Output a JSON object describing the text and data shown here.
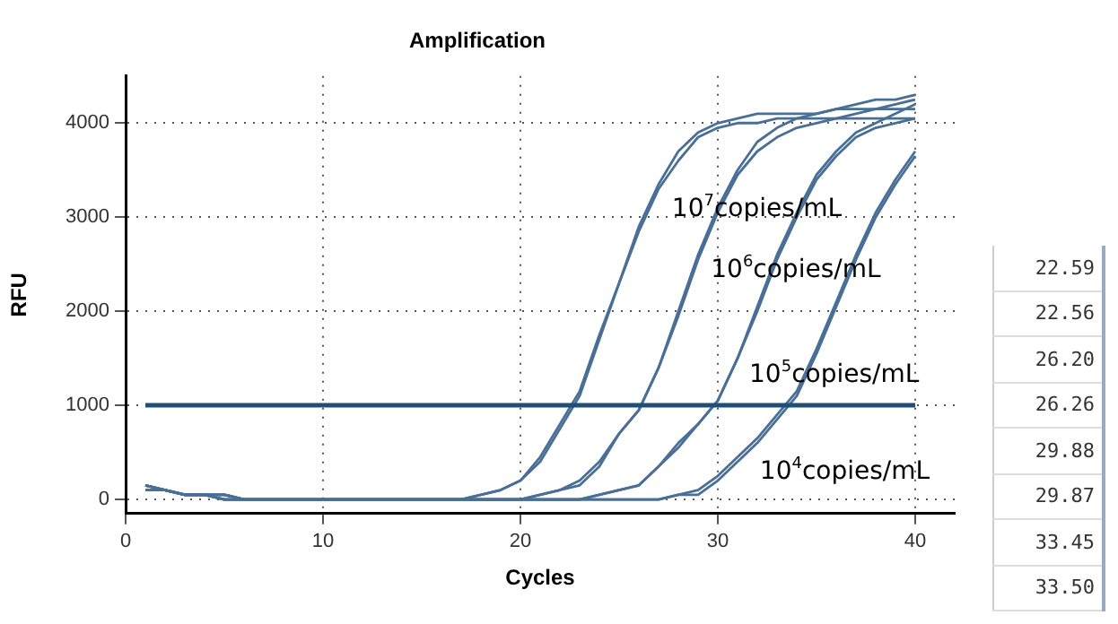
{
  "chart_data": {
    "type": "line",
    "title": "Amplification",
    "xlabel": "Cycles",
    "ylabel": "RFU",
    "x": [
      1,
      2,
      3,
      4,
      5,
      6,
      7,
      8,
      9,
      10,
      11,
      12,
      13,
      14,
      15,
      16,
      17,
      18,
      19,
      20,
      21,
      22,
      23,
      24,
      25,
      26,
      27,
      28,
      29,
      30,
      31,
      32,
      33,
      34,
      35,
      36,
      37,
      38,
      39,
      40
    ],
    "series": [
      {
        "name": "10$^{7}$copies/mL",
        "color": "#4a6f96",
        "values": [
          150,
          100,
          50,
          50,
          50,
          0,
          0,
          0,
          0,
          0,
          0,
          0,
          0,
          0,
          0,
          0,
          0,
          50,
          100,
          200,
          450,
          800,
          1150,
          1750,
          2300,
          2850,
          3300,
          3600,
          3850,
          3950,
          4000,
          4000,
          4050,
          4050,
          4050,
          4050,
          4050,
          4050,
          4050,
          4050
        ]
      },
      {
        "color": "#4a6f96",
        "values": [
          100,
          100,
          50,
          50,
          0,
          0,
          0,
          0,
          0,
          0,
          0,
          0,
          0,
          0,
          0,
          0,
          0,
          50,
          100,
          200,
          400,
          750,
          1100,
          1700,
          2300,
          2900,
          3350,
          3700,
          3900,
          4000,
          4050,
          4100,
          4100,
          4100,
          4100,
          4150,
          4150,
          4150,
          4150,
          4150
        ]
      },
      {
        "name": "10$^{6}$copies/mL",
        "color": "#4a6f96",
        "values": [
          150,
          100,
          50,
          50,
          50,
          0,
          0,
          0,
          0,
          0,
          0,
          0,
          0,
          0,
          0,
          0,
          0,
          0,
          0,
          0,
          50,
          100,
          200,
          400,
          700,
          950,
          1400,
          2000,
          2600,
          3100,
          3500,
          3800,
          3950,
          4050,
          4100,
          4150,
          4200,
          4250,
          4250,
          4300
        ]
      },
      {
        "color": "#4a6f96",
        "values": [
          100,
          100,
          50,
          50,
          0,
          0,
          0,
          0,
          0,
          0,
          0,
          0,
          0,
          0,
          0,
          0,
          0,
          0,
          0,
          0,
          50,
          100,
          150,
          350,
          700,
          950,
          1400,
          1950,
          2550,
          3050,
          3450,
          3700,
          3850,
          3950,
          4000,
          4050,
          4100,
          4150,
          4200,
          4250
        ]
      },
      {
        "name": "10$^{5}$copies/mL",
        "color": "#4a6f96",
        "values": [
          150,
          100,
          50,
          50,
          50,
          0,
          0,
          0,
          0,
          0,
          0,
          0,
          0,
          0,
          0,
          0,
          0,
          0,
          0,
          0,
          0,
          0,
          0,
          50,
          100,
          150,
          350,
          600,
          800,
          1050,
          1500,
          2050,
          2600,
          3050,
          3450,
          3700,
          3900,
          4000,
          4100,
          4200
        ]
      },
      {
        "color": "#4a6f96",
        "values": [
          100,
          100,
          50,
          50,
          0,
          0,
          0,
          0,
          0,
          0,
          0,
          0,
          0,
          0,
          0,
          0,
          0,
          0,
          0,
          0,
          0,
          0,
          0,
          50,
          100,
          150,
          350,
          550,
          800,
          1050,
          1500,
          2000,
          2550,
          3000,
          3400,
          3650,
          3850,
          3950,
          4000,
          4050
        ]
      },
      {
        "name": "10$^{4}$copies/mL",
        "color": "#4a6f96",
        "values": [
          150,
          100,
          50,
          50,
          50,
          0,
          0,
          0,
          0,
          0,
          0,
          0,
          0,
          0,
          0,
          0,
          0,
          0,
          0,
          0,
          0,
          0,
          0,
          0,
          0,
          0,
          0,
          50,
          100,
          250,
          450,
          650,
          900,
          1150,
          1600,
          2100,
          2600,
          3050,
          3400,
          3700
        ]
      },
      {
        "color": "#4a6f96",
        "values": [
          100,
          100,
          50,
          50,
          0,
          0,
          0,
          0,
          0,
          0,
          0,
          0,
          0,
          0,
          0,
          0,
          0,
          0,
          0,
          0,
          0,
          0,
          0,
          0,
          0,
          0,
          0,
          50,
          50,
          200,
          400,
          600,
          850,
          1100,
          1550,
          2050,
          2550,
          3000,
          3350,
          3650
        ]
      }
    ],
    "xlim": [
      0,
      42
    ],
    "xticks": [
      0,
      10,
      20,
      30,
      40
    ],
    "ylim": [
      -150,
      4500
    ],
    "yticks": [
      0,
      1000,
      2000,
      3000,
      4000
    ],
    "grid": true,
    "legend": false,
    "marker": "none",
    "line_style": "solid",
    "ref_lines": [
      {
        "axis": "y",
        "value": 1000,
        "color": "#1f4e79"
      }
    ],
    "annotations": [
      "22.59",
      "22.56",
      "26.20",
      "26.26",
      "29.88",
      "29.87",
      "33.45",
      "33.50"
    ]
  }
}
